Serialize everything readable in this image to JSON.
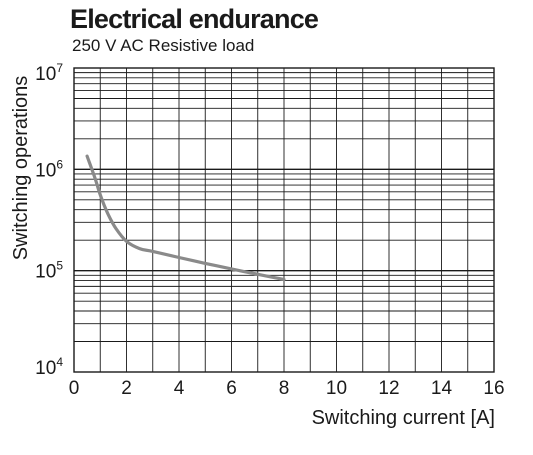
{
  "chart_data": {
    "type": "line",
    "title": "Electrical endurance",
    "subtitle": "250 V AC Resistive load",
    "xlabel": "Switching current [A]",
    "ylabel": "Switching operations",
    "xlim": [
      0,
      16
    ],
    "ylim": [
      10000,
      10000000
    ],
    "yscale": "log",
    "grid": true,
    "x_ticks": [
      "0",
      "2",
      "4",
      "6",
      "8",
      "10",
      "12",
      "14",
      "16"
    ],
    "y_ticks": [
      {
        "base": "10",
        "exp": "4"
      },
      {
        "base": "10",
        "exp": "5"
      },
      {
        "base": "10",
        "exp": "6"
      },
      {
        "base": "10",
        "exp": "7"
      }
    ],
    "line_color": "#8a8a8a",
    "series": [
      {
        "x": [
          0.5,
          0.8,
          1.0,
          1.3,
          1.6,
          2.0,
          2.5,
          3.0,
          4.0,
          5.0,
          6.0,
          7.0,
          8.0
        ],
        "y": [
          1350000,
          820000,
          560000,
          360000,
          260000,
          195000,
          165000,
          155000,
          135000,
          118000,
          104000,
          92000,
          82000
        ]
      }
    ]
  }
}
